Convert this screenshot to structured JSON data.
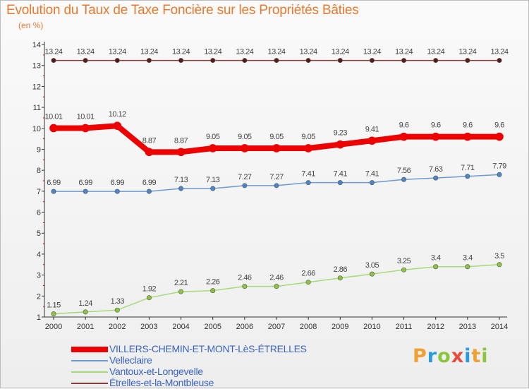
{
  "header": {
    "title": "Evolution du Taux de Taxe Foncière sur les Propriétés Bâties",
    "unit": "(en %)"
  },
  "brand": {
    "letters": [
      "P",
      "r",
      "o",
      "x",
      "i",
      "t",
      "i"
    ],
    "colors": [
      "#f0a030",
      "#2b9be0",
      "#8cc63f",
      "#e84c3d",
      "#2b9be0",
      "#f0a030",
      "#8cc63f"
    ]
  },
  "chart_data": {
    "type": "line",
    "title": "Evolution du Taux de Taxe Foncière sur les Propriétés Bâties",
    "ylabel": "(en %)",
    "xlabel": "",
    "x": [
      2000,
      2001,
      2002,
      2003,
      2004,
      2005,
      2006,
      2007,
      2008,
      2009,
      2010,
      2011,
      2012,
      2013,
      2014
    ],
    "ylim": [
      1,
      14
    ],
    "yticks": [
      1,
      2,
      3,
      4,
      5,
      6,
      7,
      8,
      9,
      10,
      11,
      12,
      13,
      14
    ],
    "grid": false,
    "legend_position": "bottom",
    "series": [
      {
        "name": "VILLERS-CHEMIN-ET-MONT-LèS-ÉTRELLES",
        "color": "#ee0000",
        "marker": "#ee0000",
        "width": 8,
        "values": [
          10.01,
          10.01,
          10.12,
          8.87,
          8.87,
          9.05,
          9.05,
          9.05,
          9.05,
          9.23,
          9.41,
          9.6,
          9.6,
          9.6,
          9.6
        ],
        "labels": [
          "10.01",
          "10.01",
          "10.12",
          "8.87",
          "8.87",
          "9.05",
          "9.05",
          "9.05",
          "9.05",
          "9.23",
          "9.41",
          "9.6",
          "9.6",
          "9.6",
          "9.6"
        ]
      },
      {
        "name": "Velleclaire",
        "color": "#6b9bd0",
        "marker": "#4a86c8",
        "width": 1.5,
        "values": [
          6.99,
          6.99,
          6.99,
          6.99,
          7.13,
          7.13,
          7.27,
          7.27,
          7.41,
          7.41,
          7.41,
          7.56,
          7.63,
          7.71,
          7.79
        ],
        "labels": [
          "6.99",
          "6.99",
          "6.99",
          "6.99",
          "7.13",
          "7.13",
          "7.27",
          "7.27",
          "7.41",
          "7.41",
          "7.41",
          "7.56",
          "7.63",
          "7.71",
          "7.79"
        ]
      },
      {
        "name": "Vantoux-et-Longevelle",
        "color": "#a6d97a",
        "marker": "#8cc63f",
        "width": 1.5,
        "values": [
          1.15,
          1.24,
          1.33,
          1.92,
          2.21,
          2.26,
          2.46,
          2.46,
          2.66,
          2.86,
          3.05,
          3.25,
          3.4,
          3.4,
          3.5
        ],
        "labels": [
          "1.15",
          "1.24",
          "1.33",
          "1.92",
          "2.21",
          "2.26",
          "2.46",
          "2.46",
          "2.66",
          "2.86",
          "3.05",
          "3.25",
          "3.4",
          "3.4",
          "3.5"
        ]
      },
      {
        "name": "Étrelles-et-la-Montbleuse",
        "color": "#8a3b3b",
        "marker": "#5a1a1a",
        "width": 1.5,
        "values": [
          13.24,
          13.24,
          13.24,
          13.24,
          13.24,
          13.24,
          13.24,
          13.24,
          13.24,
          13.24,
          13.24,
          13.24,
          13.24,
          13.24,
          13.24
        ],
        "labels": [
          "13.24",
          "13.24",
          "13.24",
          "13.24",
          "13.24",
          "13.24",
          "13.24",
          "13.24",
          "13.24",
          "13.24",
          "13.24",
          "13.24",
          "13.24",
          "13.24",
          "13.24"
        ]
      }
    ]
  }
}
